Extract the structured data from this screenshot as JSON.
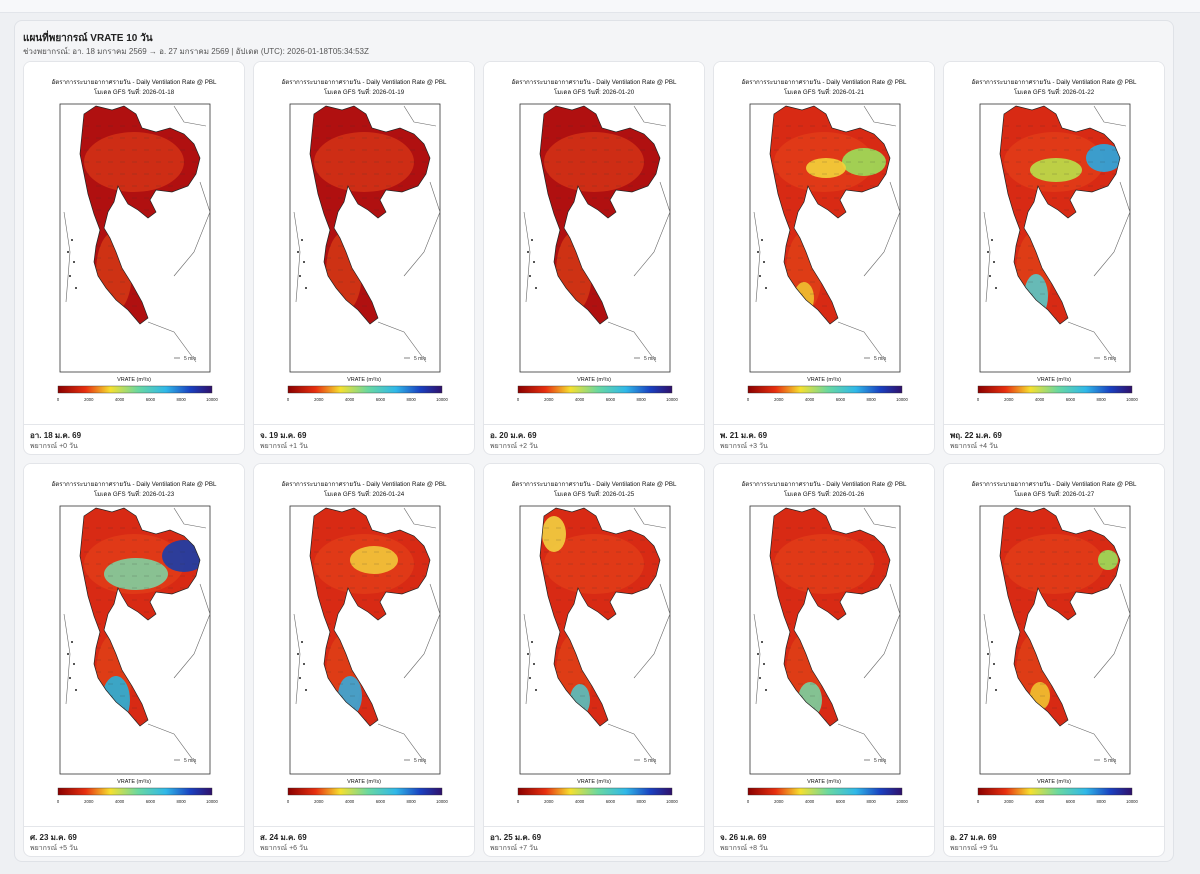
{
  "header": {
    "title": "แผนที่พยากรณ์ VRATE 10 วัน",
    "subtitle": "ช่วงพยากรณ์: อา. 18 มกราคม 2569 → อ. 27 มกราคม 2569 | อัปเดต (UTC): 2026-01-18T05:34:53Z"
  },
  "map_common": {
    "title_line1": "อัตราการระบายอากาศรายวัน - Daily Ventilation Rate @ PBL",
    "title_prefix": "โมเดล GFS วันที่: ",
    "vector_label": "5 m/s",
    "colorbar_label": "VRATE (m²/s)",
    "colorbar_ticks": [
      "0",
      "2000",
      "4000",
      "6000",
      "8000",
      "10000"
    ],
    "colors": {
      "low": "#b01010",
      "mid": "#f5e030",
      "high": "#3a2aa0"
    }
  },
  "forecast_days": [
    {
      "run_date": "2026-01-18",
      "date_label": "อา. 18 ม.ค. 69",
      "lead_label": "พยากรณ์ +0 วัน"
    },
    {
      "run_date": "2026-01-19",
      "date_label": "จ. 19 ม.ค. 69",
      "lead_label": "พยากรณ์ +1 วัน"
    },
    {
      "run_date": "2026-01-20",
      "date_label": "อ. 20 ม.ค. 69",
      "lead_label": "พยากรณ์ +2 วัน"
    },
    {
      "run_date": "2026-01-21",
      "date_label": "พ. 21 ม.ค. 69",
      "lead_label": "พยากรณ์ +3 วัน"
    },
    {
      "run_date": "2026-01-22",
      "date_label": "พฤ. 22 ม.ค. 69",
      "lead_label": "พยากรณ์ +4 วัน"
    },
    {
      "run_date": "2026-01-23",
      "date_label": "ศ. 23 ม.ค. 69",
      "lead_label": "พยากรณ์ +5 วัน"
    },
    {
      "run_date": "2026-01-24",
      "date_label": "ส. 24 ม.ค. 69",
      "lead_label": "พยากรณ์ +6 วัน"
    },
    {
      "run_date": "2026-01-25",
      "date_label": "อา. 25 ม.ค. 69",
      "lead_label": "พยากรณ์ +7 วัน"
    },
    {
      "run_date": "2026-01-26",
      "date_label": "จ. 26 ม.ค. 69",
      "lead_label": "พยากรณ์ +8 วัน"
    },
    {
      "run_date": "2026-01-27",
      "date_label": "อ. 27 ม.ค. 69",
      "lead_label": "พยากรณ์ +9 วัน"
    }
  ]
}
